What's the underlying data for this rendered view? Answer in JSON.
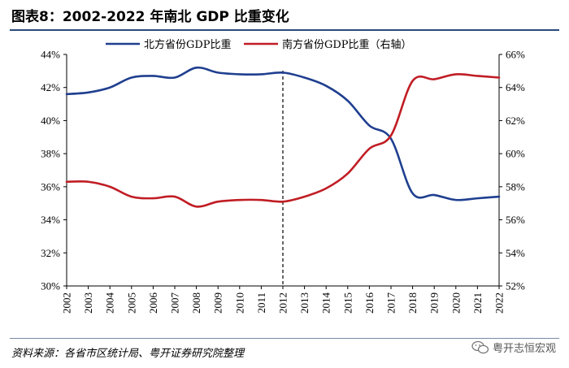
{
  "header": {
    "title": "图表8：2002-2022 年南北 GDP 比重变化"
  },
  "footer": {
    "source": "资料来源：各省市区统计局、粤开证券研究院整理",
    "watermark": "粤开志恒宏观"
  },
  "chart_data": {
    "type": "line",
    "title": "图表8：2002-2022 年南北 GDP 比重变化",
    "x": [
      "2002",
      "2003",
      "2004",
      "2005",
      "2006",
      "2007",
      "2008",
      "2009",
      "2010",
      "2011",
      "2012",
      "2013",
      "2014",
      "2015",
      "2016",
      "2017",
      "2018",
      "2019",
      "2020",
      "2021",
      "2022"
    ],
    "series": [
      {
        "name": "北方省份GDP比重",
        "axis": "left",
        "color": "#1f3f8f",
        "values": [
          41.6,
          41.7,
          42.0,
          42.6,
          42.7,
          42.6,
          43.2,
          42.9,
          42.8,
          42.8,
          42.9,
          42.6,
          42.1,
          41.2,
          39.7,
          38.9,
          35.6,
          35.5,
          35.2,
          35.3,
          35.4
        ]
      },
      {
        "name": "南方省份GDP比重（右轴）",
        "axis": "right",
        "color": "#c01d24",
        "values": [
          58.3,
          58.3,
          58.0,
          57.4,
          57.3,
          57.4,
          56.8,
          57.1,
          57.2,
          57.2,
          57.1,
          57.4,
          57.9,
          58.8,
          60.3,
          61.1,
          64.4,
          64.5,
          64.8,
          64.7,
          64.6
        ]
      }
    ],
    "left_axis": {
      "ylim": [
        30,
        44
      ],
      "ticks": [
        30,
        32,
        34,
        36,
        38,
        40,
        42,
        44
      ],
      "tick_labels": [
        "30%",
        "32%",
        "34%",
        "36%",
        "38%",
        "40%",
        "42%",
        "44%"
      ]
    },
    "right_axis": {
      "ylim": [
        52,
        66
      ],
      "ticks": [
        52,
        54,
        56,
        58,
        60,
        62,
        64,
        66
      ],
      "tick_labels": [
        "52%",
        "54%",
        "56%",
        "58%",
        "60%",
        "62%",
        "64%",
        "66%"
      ]
    },
    "annotations": [
      {
        "type": "vertical-dashed-line",
        "x": "2012"
      }
    ],
    "legend": {
      "position": "top"
    },
    "grid": false,
    "xlabel": "",
    "ylabel": ""
  }
}
